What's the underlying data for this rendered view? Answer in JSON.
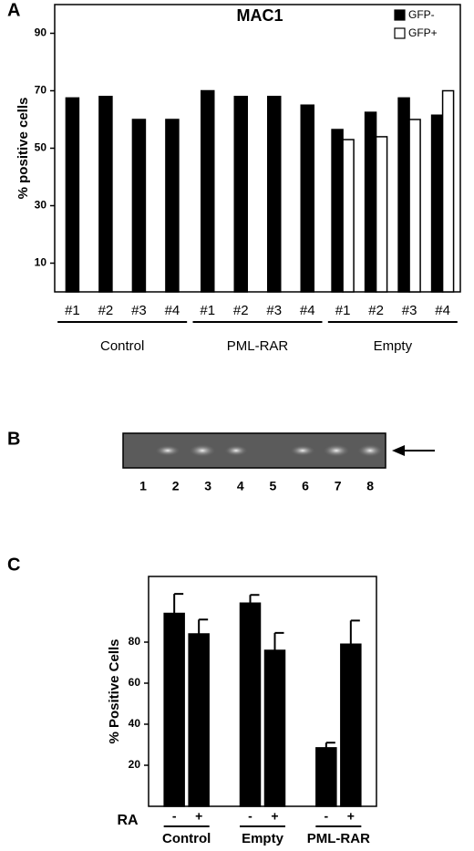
{
  "chart_data": [
    {
      "type": "bar",
      "panel_label": "A",
      "title": "MAC1",
      "y_label": "% positive cells",
      "groups": [
        {
          "label": "Control",
          "categories": [
            "#1",
            "#2",
            "#3",
            "#4"
          ]
        },
        {
          "label": "PML-RAR",
          "categories": [
            "#1",
            "#2",
            "#3",
            "#4"
          ]
        },
        {
          "label": "Empty",
          "categories": [
            "#1",
            "#2",
            "#3",
            "#4"
          ]
        }
      ],
      "series": [
        {
          "name": "GFP-",
          "color": "#000000",
          "values": [
            67.5,
            68,
            60,
            60,
            70,
            68,
            68,
            65,
            56.5,
            62.5,
            67.5,
            61.5
          ]
        },
        {
          "name": "GFP+",
          "color": "#ffffff",
          "values": [
            null,
            null,
            null,
            null,
            null,
            null,
            null,
            null,
            53,
            54,
            60,
            70
          ]
        }
      ],
      "ylim": [
        0,
        100
      ],
      "yticks": [
        10,
        30,
        50,
        70,
        90
      ],
      "legend": "upper right"
    },
    {
      "type": "bar",
      "panel_label": "C",
      "y_label": "% Positive Cells",
      "group_axis_label": "RA",
      "groups": [
        {
          "label": "Control",
          "categories": [
            "-",
            "+"
          ]
        },
        {
          "label": "Empty",
          "categories": [
            "-",
            "+"
          ]
        },
        {
          "label": "PML-RAR",
          "categories": [
            "-",
            "+"
          ]
        }
      ],
      "color": "#000000",
      "values": [
        94,
        84,
        99,
        76,
        28.5,
        79
      ],
      "errors": [
        9.5,
        7,
        4,
        8.5,
        2.5,
        11.5
      ],
      "ylim": [
        0,
        112
      ],
      "yticks": [
        20,
        40,
        60,
        80
      ]
    }
  ],
  "gel": {
    "panel_label": "B",
    "lanes": [
      "1",
      "2",
      "3",
      "4",
      "5",
      "6",
      "7",
      "8"
    ]
  }
}
